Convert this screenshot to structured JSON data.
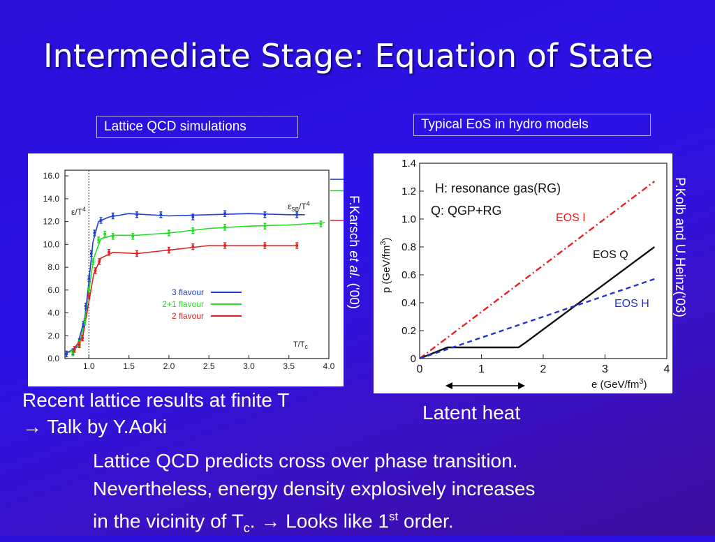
{
  "slide": {
    "title": "Intermediate Stage: Equation of State",
    "left_box_label": "Lattice QCD simulations",
    "right_box_label": "Typical EoS in hydro models",
    "left_citation_prefix": "F.Karsch ",
    "left_citation_italic": "et al.",
    "left_citation_suffix": " ('00)",
    "right_citation": "P.Kolb and U.Heinz('03)",
    "caption_line1": "Recent lattice results at finite T",
    "caption_line2_arrow": "→",
    "caption_line2": " Talk by Y.Aoki",
    "latent_heat_label": "Latent heat",
    "summary_line1": "Lattice QCD predicts cross over phase transition.",
    "summary_line2": "Nevertheless, energy density explosively increases",
    "summary_line3_a": "in the vicinity of T",
    "summary_line3_sub": "c",
    "summary_line3_b": ".  ",
    "summary_line3_arrow": "→",
    "summary_line3_c": " Looks like 1",
    "summary_line3_sup": "st",
    "summary_line3_d": " order."
  },
  "chart_data": [
    {
      "type": "line",
      "xlabel": "T/T",
      "xlabel_sub": "c",
      "ylabel": "ε/T",
      "ylabel_sup": "4",
      "sb_label": "ε",
      "sb_label_sub": "SB",
      "sb_label_tail": "/T",
      "sb_label_sup": "4",
      "xlim": [
        0.7,
        4.0
      ],
      "ylim": [
        0,
        16.5
      ],
      "x_ticks": [
        "1.0",
        "1.5",
        "2.0",
        "2.5",
        "3.0",
        "3.5",
        "4.0"
      ],
      "y_ticks": [
        "0.0",
        "2.0",
        "4.0",
        "6.0",
        "8.0",
        "10.0",
        "12.0",
        "14.0",
        "16.0"
      ],
      "tc_line": 1.0,
      "series": [
        {
          "name": "3 flavour",
          "color": "#1e3fd0",
          "sb_limit": 15.7,
          "points": [
            [
              0.72,
              0.4
            ],
            [
              0.8,
              0.6
            ],
            [
              0.88,
              1.5
            ],
            [
              0.93,
              3.0
            ],
            [
              0.96,
              4.6
            ],
            [
              1.0,
              7.0
            ],
            [
              1.03,
              9.2
            ],
            [
              1.07,
              11.0
            ],
            [
              1.15,
              12.1
            ],
            [
              1.3,
              12.5
            ],
            [
              1.6,
              12.6
            ],
            [
              1.9,
              12.6
            ],
            [
              2.3,
              12.4
            ],
            [
              2.7,
              12.7
            ],
            [
              3.2,
              12.6
            ],
            [
              3.6,
              12.6
            ]
          ],
          "curve": [
            [
              0.7,
              0.4
            ],
            [
              0.85,
              1.0
            ],
            [
              0.95,
              3.6
            ],
            [
              1.0,
              6.8
            ],
            [
              1.05,
              10.2
            ],
            [
              1.12,
              12.0
            ],
            [
              1.25,
              12.4
            ],
            [
              1.5,
              12.7
            ],
            [
              2.0,
              12.5
            ],
            [
              2.5,
              12.6
            ],
            [
              3.0,
              12.7
            ],
            [
              3.5,
              12.6
            ],
            [
              3.7,
              12.6
            ]
          ]
        },
        {
          "name": "2+1 flavour",
          "color": "#22dd22",
          "sb_limit": 14.7,
          "points": [
            [
              0.8,
              0.5
            ],
            [
              0.88,
              1.3
            ],
            [
              0.95,
              3.2
            ],
            [
              1.0,
              6.0
            ],
            [
              1.05,
              8.5
            ],
            [
              1.12,
              10.4
            ],
            [
              1.2,
              10.9
            ],
            [
              1.3,
              10.7
            ],
            [
              1.55,
              10.7
            ],
            [
              2.0,
              11.0
            ],
            [
              2.3,
              11.2
            ],
            [
              2.7,
              11.5
            ],
            [
              3.2,
              11.6
            ],
            [
              3.9,
              11.8
            ]
          ],
          "curve": [
            [
              0.75,
              0.5
            ],
            [
              0.88,
              1.3
            ],
            [
              0.95,
              3.2
            ],
            [
              1.0,
              6.0
            ],
            [
              1.06,
              8.8
            ],
            [
              1.15,
              10.5
            ],
            [
              1.3,
              10.8
            ],
            [
              1.6,
              10.8
            ],
            [
              2.0,
              11.0
            ],
            [
              2.5,
              11.4
            ],
            [
              3.0,
              11.6
            ],
            [
              3.5,
              11.7
            ],
            [
              3.95,
              11.9
            ]
          ]
        },
        {
          "name": "2 flavour",
          "color": "#e02020",
          "sb_limit": 12.1,
          "points": [
            [
              0.82,
              0.8
            ],
            [
              0.88,
              1.2
            ],
            [
              0.92,
              1.8
            ],
            [
              1.0,
              5.5
            ],
            [
              1.08,
              7.7
            ],
            [
              1.13,
              8.5
            ],
            [
              1.25,
              9.3
            ],
            [
              1.6,
              9.2
            ],
            [
              2.0,
              9.5
            ],
            [
              2.3,
              9.8
            ],
            [
              2.7,
              9.9
            ],
            [
              3.2,
              9.9
            ],
            [
              3.6,
              9.9
            ]
          ],
          "curve": [
            [
              0.8,
              0.8
            ],
            [
              0.92,
              1.8
            ],
            [
              1.0,
              5.0
            ],
            [
              1.06,
              7.4
            ],
            [
              1.15,
              8.8
            ],
            [
              1.3,
              9.3
            ],
            [
              1.6,
              9.2
            ],
            [
              2.0,
              9.5
            ],
            [
              2.5,
              9.9
            ],
            [
              3.0,
              9.9
            ],
            [
              3.6,
              9.9
            ]
          ]
        }
      ]
    },
    {
      "type": "line",
      "xlabel": "e (GeV/fm",
      "xlabel_sup": "3",
      "xlabel_tail": ")",
      "ylabel": "p (GeV/fm",
      "ylabel_sup": "3",
      "ylabel_tail": ")",
      "xlim": [
        0,
        4
      ],
      "ylim": [
        0,
        1.4
      ],
      "x_ticks": [
        "0",
        "1",
        "2",
        "3",
        "4"
      ],
      "y_ticks": [
        "0",
        "0.2",
        "0.4",
        "0.6",
        "0.8",
        "1.0",
        "1.2",
        "1.4"
      ],
      "annotation_line1": "H: resonance gas(RG)",
      "annotation_line2": "Q: QGP+RG",
      "series": [
        {
          "name": "EOS I",
          "color": "#e82020",
          "dash": "dashdot",
          "points": [
            [
              0,
              0
            ],
            [
              3.8,
              1.27
            ]
          ]
        },
        {
          "name": "EOS Q",
          "color": "#111111",
          "dash": "solid",
          "points": [
            [
              0,
              0
            ],
            [
              0.45,
              0.08
            ],
            [
              1.6,
              0.08
            ],
            [
              1.7,
              0.11
            ],
            [
              3.8,
              0.8
            ]
          ]
        },
        {
          "name": "EOS H",
          "color": "#2233cc",
          "dash": "dashed",
          "points": [
            [
              0,
              0
            ],
            [
              3.8,
              0.57
            ]
          ]
        }
      ]
    }
  ]
}
